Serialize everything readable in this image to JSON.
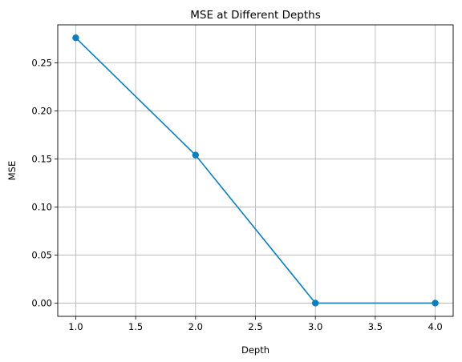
{
  "chart_data": {
    "type": "line",
    "title": "MSE at Different Depths",
    "xlabel": "Depth",
    "ylabel": "MSE",
    "xlim": [
      0.85,
      4.15
    ],
    "ylim": [
      -0.0138,
      0.2895
    ],
    "xticks": [
      1.0,
      1.5,
      2.0,
      2.5,
      3.0,
      3.5,
      4.0
    ],
    "xtick_labels": [
      "1.0",
      "1.5",
      "2.0",
      "2.5",
      "3.0",
      "3.5",
      "4.0"
    ],
    "yticks": [
      0.0,
      0.05,
      0.1,
      0.15,
      0.2,
      0.25
    ],
    "ytick_labels": [
      "0.00",
      "0.05",
      "0.10",
      "0.15",
      "0.20",
      "0.25"
    ],
    "grid": true,
    "series": [
      {
        "x": [
          1,
          2,
          3,
          4
        ],
        "y": [
          0.276,
          0.154,
          0.0,
          0.0
        ],
        "color": "#0b7fbd",
        "marker": "circle"
      }
    ]
  }
}
